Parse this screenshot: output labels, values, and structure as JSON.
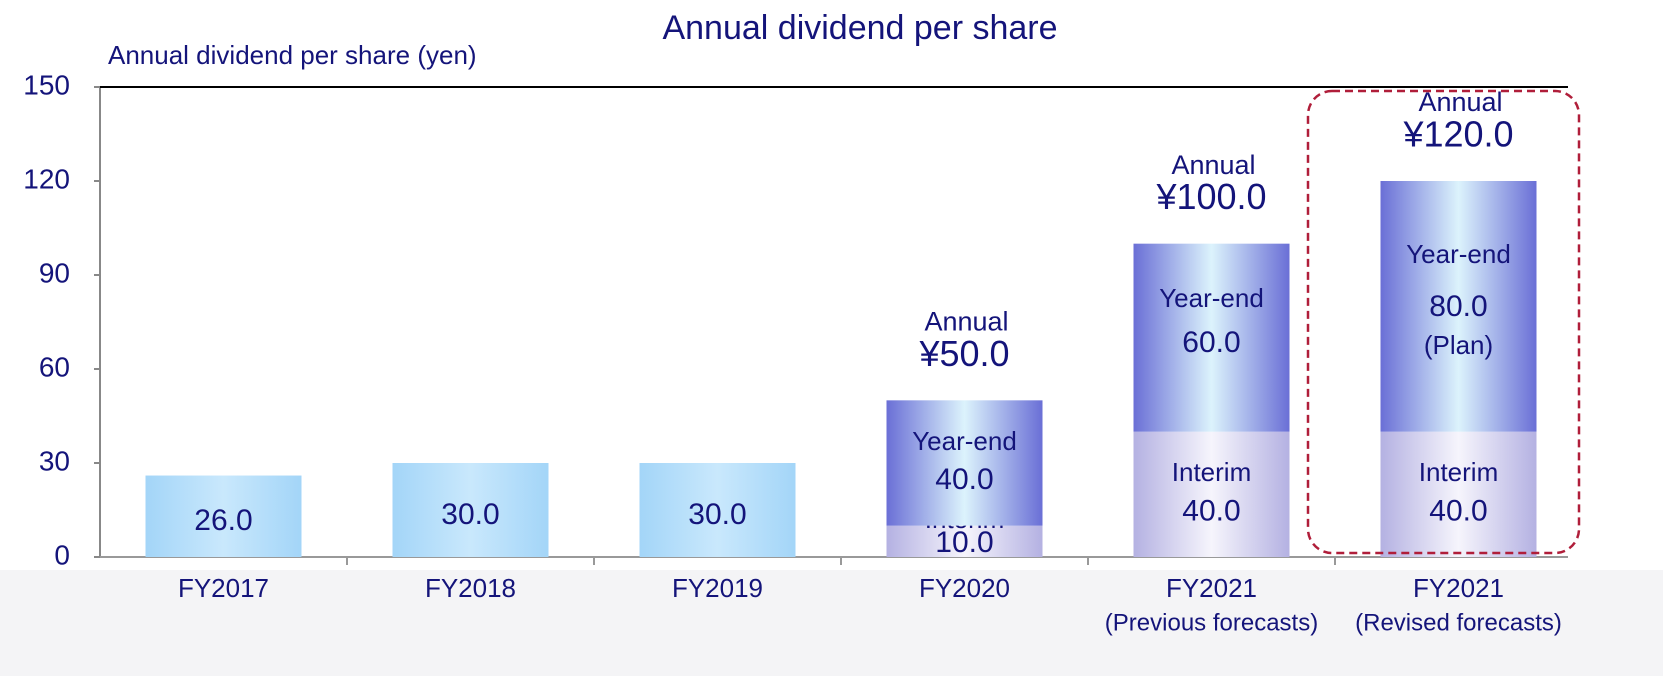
{
  "chart_data": {
    "type": "bar",
    "stacked": true,
    "title": "Annual dividend per share",
    "y_label": "Annual dividend per share (yen)",
    "categories": [
      "FY2017",
      "FY2018",
      "FY2019",
      "FY2020",
      "FY2021",
      "FY2021"
    ],
    "category_notes": [
      null,
      null,
      null,
      null,
      "(Previous forecasts)",
      "(Revised forecasts)"
    ],
    "series": [
      {
        "color": "#a3d5f8",
        "values": [
          26,
          30,
          30,
          null,
          null,
          null
        ],
        "value_labels": [
          "26.0",
          "30.0",
          "30.0",
          null,
          null,
          null
        ]
      },
      {
        "name": "Interim",
        "color": "#b4b1e2",
        "values": [
          null,
          null,
          null,
          10,
          40,
          40
        ],
        "value_labels": [
          null,
          null,
          null,
          "10.0",
          "40.0",
          "40.0"
        ]
      },
      {
        "name": "Year-end",
        "color": "#6a6fd6",
        "values": [
          null,
          null,
          null,
          40,
          60,
          80
        ],
        "value_labels": [
          null,
          null,
          null,
          "40.0",
          "60.0",
          "80.0"
        ],
        "value_notes": [
          null,
          null,
          null,
          null,
          null,
          "(Plan)"
        ]
      }
    ],
    "totals": {
      "label": "Annual",
      "values": [
        null,
        null,
        null,
        50,
        100,
        120
      ],
      "value_labels": [
        null,
        null,
        null,
        "¥50.0",
        "¥100.0",
        "¥120.0"
      ]
    },
    "ylim": [
      0,
      150
    ],
    "yticks": [
      0,
      30,
      60,
      90,
      120,
      150
    ]
  }
}
